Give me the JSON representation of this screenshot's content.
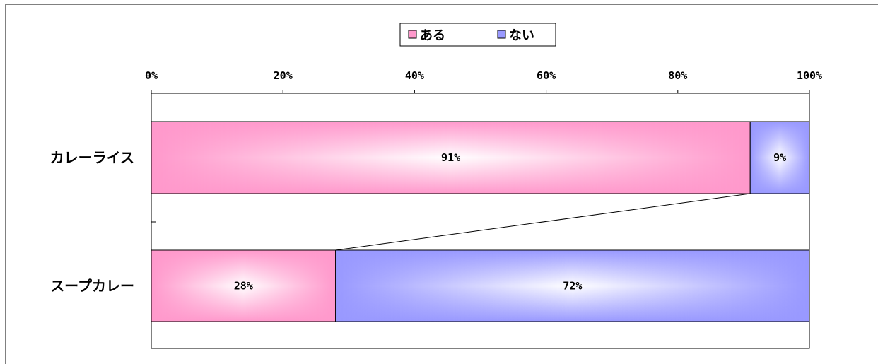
{
  "chart_data": {
    "type": "bar",
    "orientation": "horizontal",
    "stacked": "percent",
    "categories": [
      "カレーライス",
      "スープカレー"
    ],
    "series": [
      {
        "name": "ある",
        "values": [
          91,
          28
        ],
        "labels": [
          "91%",
          "28%"
        ],
        "color": "#ff99cc"
      },
      {
        "name": "ない",
        "values": [
          9,
          72
        ],
        "labels": [
          "9%",
          "72%"
        ],
        "color": "#9999ff"
      }
    ],
    "xlim": [
      0,
      100
    ],
    "xticks": [
      0,
      20,
      40,
      60,
      80,
      100
    ],
    "xtick_labels": [
      "0%",
      "20%",
      "40%",
      "60%",
      "80%",
      "100%"
    ],
    "xaxis_position": "top",
    "series_lines": true,
    "grid": false,
    "legend": {
      "position": "top-center",
      "entries": [
        "ある",
        "ない"
      ]
    },
    "title": "",
    "xlabel": "",
    "ylabel": ""
  }
}
